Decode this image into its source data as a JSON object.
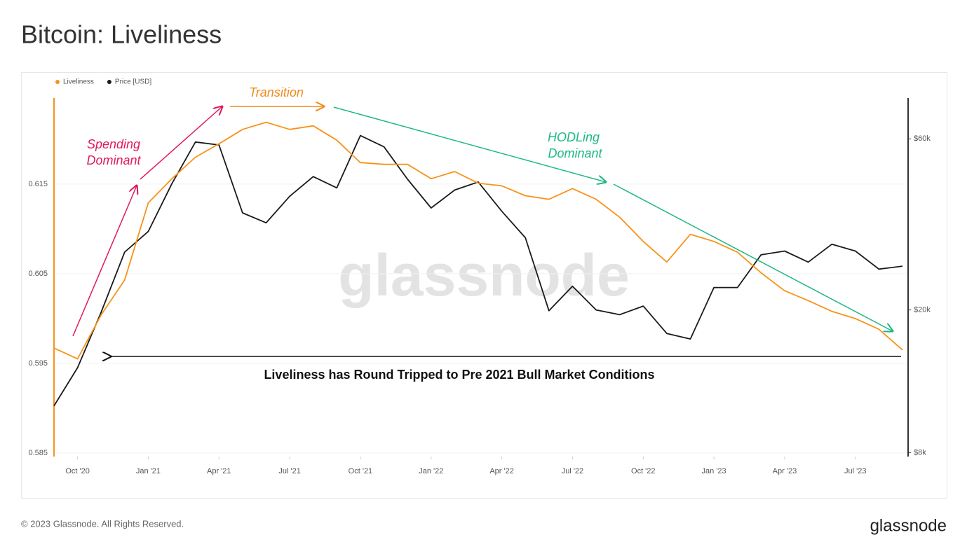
{
  "chart_data": {
    "type": "line",
    "title": "Bitcoin: Liveliness",
    "x": [
      "2020-09",
      "2020-10",
      "2020-11",
      "2020-12",
      "2021-01",
      "2021-02",
      "2021-03",
      "2021-04",
      "2021-05",
      "2021-06",
      "2021-07",
      "2021-08",
      "2021-09",
      "2021-10",
      "2021-11",
      "2021-12",
      "2022-01",
      "2022-02",
      "2022-03",
      "2022-04",
      "2022-05",
      "2022-06",
      "2022-07",
      "2022-08",
      "2022-09",
      "2022-10",
      "2022-11",
      "2022-12",
      "2023-01",
      "2023-02",
      "2023-03",
      "2023-04",
      "2023-05",
      "2023-06",
      "2023-07",
      "2023-08",
      "2023-09"
    ],
    "series": [
      {
        "name": "Liveliness",
        "color": "#f7931a",
        "values": [
          0.5967,
          0.5955,
          0.6004,
          0.6043,
          0.6129,
          0.6156,
          0.618,
          0.6195,
          0.6211,
          0.6219,
          0.6211,
          0.6215,
          0.6199,
          0.6174,
          0.6172,
          0.6172,
          0.6156,
          0.6164,
          0.6151,
          0.6148,
          0.6137,
          0.6133,
          0.6145,
          0.6133,
          0.6113,
          0.6086,
          0.6063,
          0.6094,
          0.6086,
          0.6074,
          0.6051,
          0.6031,
          0.602,
          0.6008,
          0.6,
          0.5988,
          0.5965
        ]
      },
      {
        "name": "Price [USD]",
        "color": "#1a1a1a",
        "axis": "y2",
        "values": [
          10800,
          13800,
          19700,
          29000,
          33100,
          45000,
          58800,
          57700,
          37300,
          35000,
          41500,
          47100,
          43800,
          61300,
          57000,
          46300,
          38500,
          43200,
          45500,
          37700,
          31800,
          19900,
          23300,
          20000,
          19400,
          20500,
          17200,
          16600,
          23100,
          23100,
          28500,
          29200,
          27200,
          30500,
          29200,
          26000,
          26500
        ]
      }
    ],
    "xlim": [
      "2020-09",
      "2023-09"
    ],
    "xticks": [
      {
        "value": "2020-10",
        "label": "Oct '20"
      },
      {
        "value": "2021-01",
        "label": "Jan '21"
      },
      {
        "value": "2021-04",
        "label": "Apr '21"
      },
      {
        "value": "2021-07",
        "label": "Jul '21"
      },
      {
        "value": "2021-10",
        "label": "Oct '21"
      },
      {
        "value": "2022-01",
        "label": "Jan '22"
      },
      {
        "value": "2022-04",
        "label": "Apr '22"
      },
      {
        "value": "2022-07",
        "label": "Jul '22"
      },
      {
        "value": "2022-10",
        "label": "Oct '22"
      },
      {
        "value": "2023-01",
        "label": "Jan '23"
      },
      {
        "value": "2023-04",
        "label": "Apr '23"
      },
      {
        "value": "2023-07",
        "label": "Jul '23"
      }
    ],
    "ylim": [
      0.5846,
      0.6246
    ],
    "yticks": [
      0.585,
      0.595,
      0.605,
      0.615
    ],
    "y2lim": [
      7800,
      78000
    ],
    "y2scale": "log",
    "y2ticks": [
      {
        "value": 8000,
        "label": "$8k"
      },
      {
        "value": 20000,
        "label": "$20k"
      },
      {
        "value": 60000,
        "label": "$60k"
      }
    ],
    "grid": true,
    "legend": "top-left",
    "annotations": {
      "spending": [
        "Spending",
        "Dominant"
      ],
      "transition": "Transition",
      "hodling": [
        "HODLing",
        "Dominant"
      ],
      "round_trip": "Liveliness has Round Tripped to Pre 2021 Bull Market Conditions"
    },
    "watermark": "glassnode"
  },
  "footer": {
    "copyright": "© 2023 Glassnode. All Rights Reserved.",
    "brand": "glassnode"
  }
}
